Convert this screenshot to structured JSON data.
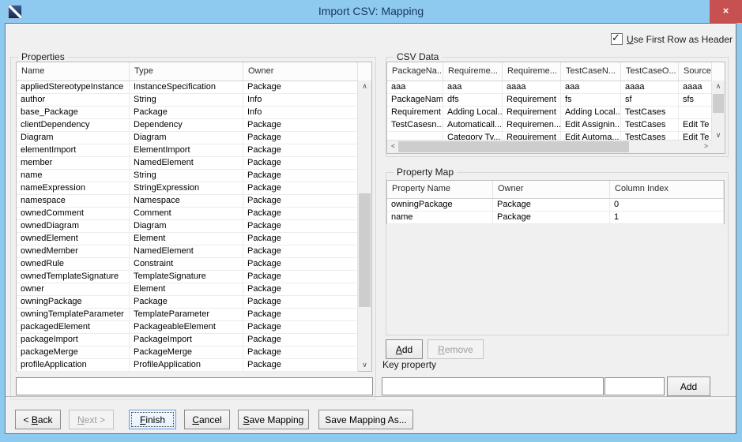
{
  "titlebar": {
    "title": "Import CSV: Mapping",
    "close_glyph": "×"
  },
  "options": {
    "use_first_row_header": {
      "mnemonic": "U",
      "rest": "se First Row as Header",
      "checked": true,
      "check_glyph": "✓"
    }
  },
  "properties_panel": {
    "label": "Properties",
    "columns": [
      "Name",
      "Type",
      "Owner"
    ],
    "rows": [
      [
        "appliedStereotypeInstance",
        "InstanceSpecification",
        "Package"
      ],
      [
        "author",
        "String",
        "Info"
      ],
      [
        "base_Package",
        "Package",
        "Info"
      ],
      [
        "clientDependency",
        "Dependency",
        "Package"
      ],
      [
        "Diagram",
        "Diagram",
        "Package"
      ],
      [
        "elementImport",
        "ElementImport",
        "Package"
      ],
      [
        "member",
        "NamedElement",
        "Package"
      ],
      [
        "name",
        "String",
        "Package"
      ],
      [
        "nameExpression",
        "StringExpression",
        "Package"
      ],
      [
        "namespace",
        "Namespace",
        "Package"
      ],
      [
        "ownedComment",
        "Comment",
        "Package"
      ],
      [
        "ownedDiagram",
        "Diagram",
        "Package"
      ],
      [
        "ownedElement",
        "Element",
        "Package"
      ],
      [
        "ownedMember",
        "NamedElement",
        "Package"
      ],
      [
        "ownedRule",
        "Constraint",
        "Package"
      ],
      [
        "ownedTemplateSignature",
        "TemplateSignature",
        "Package"
      ],
      [
        "owner",
        "Element",
        "Package"
      ],
      [
        "owningPackage",
        "Package",
        "Package"
      ],
      [
        "owningTemplateParameter",
        "TemplateParameter",
        "Package"
      ],
      [
        "packagedElement",
        "PackageableElement",
        "Package"
      ],
      [
        "packageImport",
        "PackageImport",
        "Package"
      ],
      [
        "packageMerge",
        "PackageMerge",
        "Package"
      ],
      [
        "profileApplication",
        "ProfileApplication",
        "Package"
      ]
    ],
    "filter_value": ""
  },
  "csv_panel": {
    "label": "CSV Data",
    "columns": [
      "PackageNa...",
      "Requireme...",
      "Requireme...",
      "TestCaseN...",
      "TestCaseO...",
      "Source"
    ],
    "rows": [
      [
        "aaa",
        "aaa",
        "aaaa",
        "aaa",
        "aaaa",
        "aaaa"
      ],
      [
        "PackageName",
        "dfs",
        "Requirement",
        "fs",
        "sf",
        "sfs"
      ],
      [
        "Requirement",
        "Adding Local...",
        "Requirement",
        "Adding Local...",
        "TestCases",
        ""
      ],
      [
        "TestCasesn...",
        "Automaticall...",
        "Requiremen...",
        "Edit Assignin...",
        "TestCases",
        "Edit Te"
      ],
      [
        "",
        "Category Ty...",
        "Requirement",
        "Edit Automa...",
        "TestCases",
        "Edit Te"
      ]
    ]
  },
  "property_map_panel": {
    "label": "Property Map",
    "columns": [
      "Property Name",
      "Owner",
      "Column Index"
    ],
    "rows": [
      [
        "owningPackage",
        "Package",
        "0"
      ],
      [
        "name",
        "Package",
        "1"
      ]
    ],
    "add_button": {
      "mnemonic": "A",
      "rest": "dd"
    },
    "remove_button": {
      "mnemonic": "R",
      "rest": "emove"
    }
  },
  "key_property": {
    "label": "Key property",
    "name_value": "",
    "column_value": "",
    "add_label": "Add"
  },
  "footer": {
    "back": {
      "pre": "< ",
      "mnemonic": "B",
      "rest": "ack"
    },
    "next": {
      "pre": "",
      "mnemonic": "N",
      "rest": "ext >"
    },
    "finish": {
      "pre": "",
      "mnemonic": "F",
      "rest": "inish"
    },
    "cancel": {
      "pre": "",
      "mnemonic": "C",
      "rest": "ancel"
    },
    "save_mapping": {
      "pre": "",
      "mnemonic": "S",
      "rest": "ave Mapping"
    },
    "save_mapping_as": "Save Mapping As..."
  },
  "scrollbars": {
    "up": "∧",
    "down": "∨",
    "left": "<",
    "right": ">"
  },
  "colors": {
    "frame_blue": "#8ec9f0",
    "close_red": "#c75050",
    "title_text": "#17375e",
    "content_bg": "#f0f0f0"
  }
}
